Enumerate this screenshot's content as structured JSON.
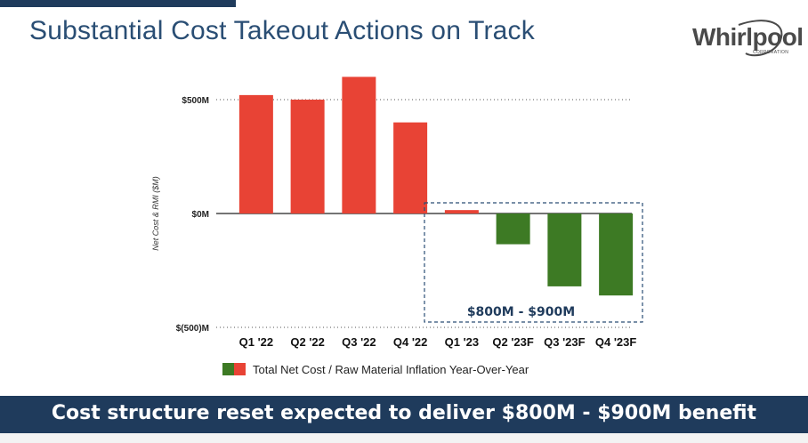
{
  "header": {
    "title": "Substantial Cost Takeout Actions on Track",
    "logo_text": "Whirlpool",
    "logo_subtext": "CORPORATION"
  },
  "chart_data": {
    "type": "bar",
    "categories": [
      "Q1 '22",
      "Q2 '22",
      "Q3 '22",
      "Q4 '22",
      "Q1 '23",
      "Q2 '23F",
      "Q3 '23F",
      "Q4 '23F"
    ],
    "values": [
      520,
      500,
      600,
      400,
      15,
      -135,
      -320,
      -360
    ],
    "ylim": [
      -500,
      600
    ],
    "yticks": [
      {
        "value": 500,
        "label": "$500M"
      },
      {
        "value": 0,
        "label": "$0M"
      },
      {
        "value": -500,
        "label": "$(500)M"
      }
    ],
    "ylabel": "Net Cost & RMI  ($M)",
    "legend": "Total Net Cost / Raw Material Inflation Year-Over-Year",
    "annotation": "$800M - $900M",
    "highlight_categories": [
      "Q1 '23",
      "Q2 '23F",
      "Q3 '23F",
      "Q4 '23F"
    ],
    "colors": {
      "positive": "#e84335",
      "negative": "#3d7a24"
    }
  },
  "footer": {
    "text": "Cost structure reset expected to deliver $800M - $900M benefit"
  }
}
